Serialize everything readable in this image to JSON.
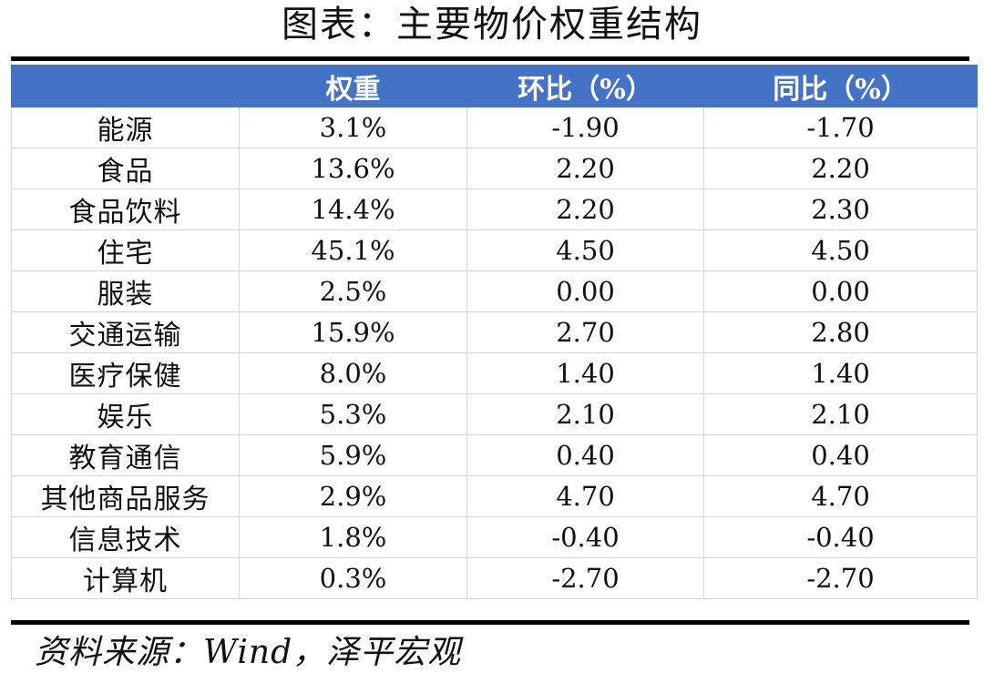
{
  "title": "图表：主要物价权重结构",
  "table": {
    "headers": [
      "",
      "权重",
      "环比（%）",
      "同比（%）"
    ],
    "rows": [
      [
        "能源",
        "3.1%",
        "-1.90",
        "-1.70"
      ],
      [
        "食品",
        "13.6%",
        "2.20",
        "2.20"
      ],
      [
        "食品饮料",
        "14.4%",
        "2.20",
        "2.30"
      ],
      [
        "住宅",
        "45.1%",
        "4.50",
        "4.50"
      ],
      [
        "服装",
        "2.5%",
        "0.00",
        "0.00"
      ],
      [
        "交通运输",
        "15.9%",
        "2.70",
        "2.80"
      ],
      [
        "医疗保健",
        "8.0%",
        "1.40",
        "1.40"
      ],
      [
        "娱乐",
        "5.3%",
        "2.10",
        "2.10"
      ],
      [
        "教育通信",
        "5.9%",
        "0.40",
        "0.40"
      ],
      [
        "其他商品服务",
        "2.9%",
        "4.70",
        "4.70"
      ],
      [
        "信息技术",
        "1.8%",
        "-0.40",
        "-0.40"
      ],
      [
        "计算机",
        "0.3%",
        "-2.70",
        "-2.70"
      ]
    ]
  },
  "source": "资料来源：Wind，泽平宏观",
  "colors": {
    "header_background": "#4472c4",
    "header_text": "#ffffff",
    "rule": "#000000",
    "grid": "#d4d4d4"
  }
}
